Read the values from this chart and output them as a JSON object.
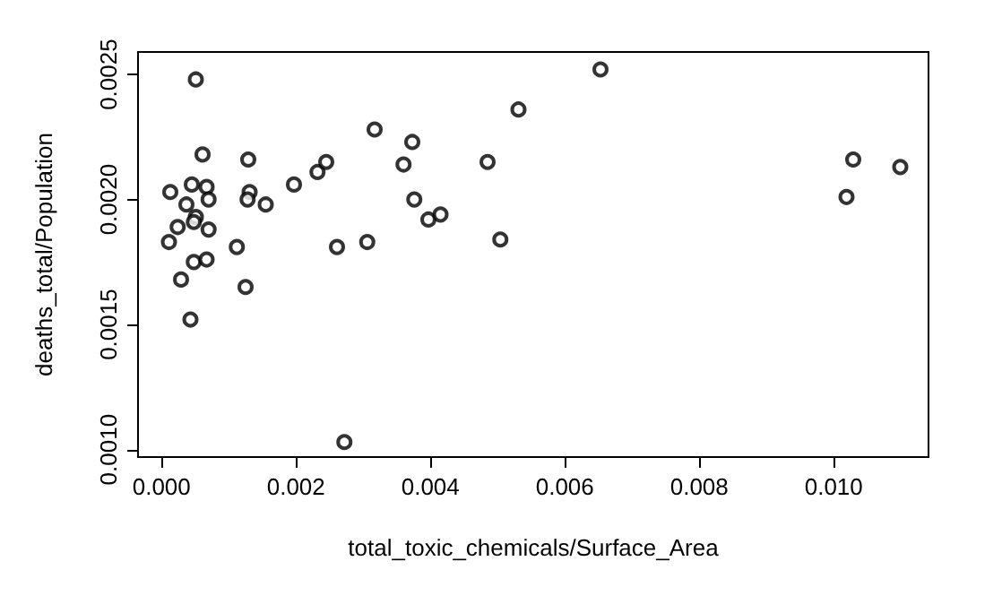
{
  "chart_data": {
    "type": "scatter",
    "xlabel": "total_toxic_chemicals/Surface_Area",
    "ylabel": "deaths_total/Population",
    "x": [
      0.00051,
      0.00013,
      0.00045,
      0.00067,
      0.0007,
      0.00037,
      0.00061,
      0.00051,
      0.00048,
      0.00024,
      0.0007,
      0.00011,
      0.00112,
      0.00048,
      0.00067,
      0.00029,
      0.00125,
      0.00043,
      0.00129,
      0.00131,
      0.00128,
      0.00155,
      0.00197,
      0.00232,
      0.00245,
      0.00261,
      0.00306,
      0.00272,
      0.00317,
      0.0036,
      0.00373,
      0.00376,
      0.00397,
      0.00415,
      0.00485,
      0.00504,
      0.00531,
      0.00653,
      0.01019,
      0.01029,
      0.01099
    ],
    "series": [
      {
        "color": "#000000",
        "values": [
          0.00248,
          0.00203,
          0.00206,
          0.00205,
          0.002,
          0.00198,
          0.00218,
          0.00193,
          0.00191,
          0.00189,
          0.00188,
          0.00183,
          0.00181,
          0.00175,
          0.00176,
          0.00168,
          0.00165,
          0.00152,
          0.00216,
          0.00203,
          0.002,
          0.00198,
          0.00206,
          0.00211,
          0.00215,
          0.00181,
          0.00183,
          0.00103,
          0.00228,
          0.00214,
          0.00223,
          0.002,
          0.00192,
          0.00194,
          0.00215,
          0.00184,
          0.00236,
          0.00252,
          0.00201,
          0.00216,
          0.00213
        ]
      }
    ],
    "xlim": [
      -0.00035,
      0.01141
    ],
    "ylim": [
      0.00097,
      0.00259
    ],
    "xticks": [
      {
        "value": 0,
        "label": "0.000"
      },
      {
        "value": 0.002,
        "label": "0.002"
      },
      {
        "value": 0.004,
        "label": "0.004"
      },
      {
        "value": 0.006,
        "label": "0.006"
      },
      {
        "value": 0.008,
        "label": "0.008"
      },
      {
        "value": 0.01,
        "label": "0.010"
      }
    ],
    "yticks": [
      {
        "value": 0.001,
        "label": "0.0010"
      },
      {
        "value": 0.0015,
        "label": "0.0015"
      },
      {
        "value": 0.002,
        "label": "0.0020"
      },
      {
        "value": 0.0025,
        "label": "0.0025"
      }
    ],
    "marker": "circle"
  }
}
